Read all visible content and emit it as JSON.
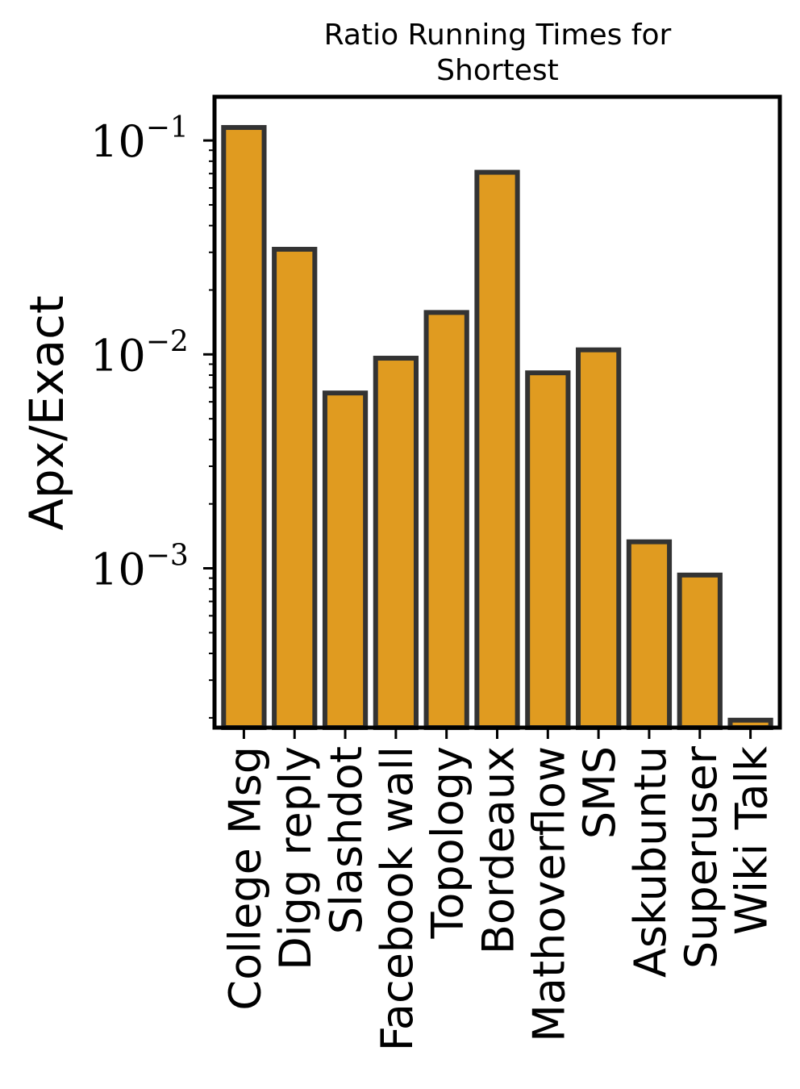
{
  "chart_data": {
    "type": "bar",
    "title": "Ratio Running Times for Shortest",
    "title_lines": [
      "Ratio Running Times for",
      "Shortest"
    ],
    "xlabel": "",
    "ylabel": "Apx/Exact",
    "yscale": "log",
    "ylim": [
      0.00018,
      0.16
    ],
    "yticks": [
      {
        "value": 0.1,
        "base": "10",
        "exp": "−1"
      },
      {
        "value": 0.01,
        "base": "10",
        "exp": "−2"
      },
      {
        "value": 0.001,
        "base": "10",
        "exp": "−3"
      }
    ],
    "categories": [
      "College Msg",
      "Digg reply",
      "Slashdot",
      "Facebook wall",
      "Topology",
      "Bordeaux",
      "Mathoverflow",
      "SMS",
      "Askubuntu",
      "Superuser",
      "Wiki Talk"
    ],
    "values": [
      0.115,
      0.031,
      0.0066,
      0.0096,
      0.0157,
      0.071,
      0.0082,
      0.0105,
      0.00133,
      0.00093,
      0.000195
    ],
    "bar_color": "#e09b20",
    "bar_edge_color": "#333333",
    "grid": false
  }
}
